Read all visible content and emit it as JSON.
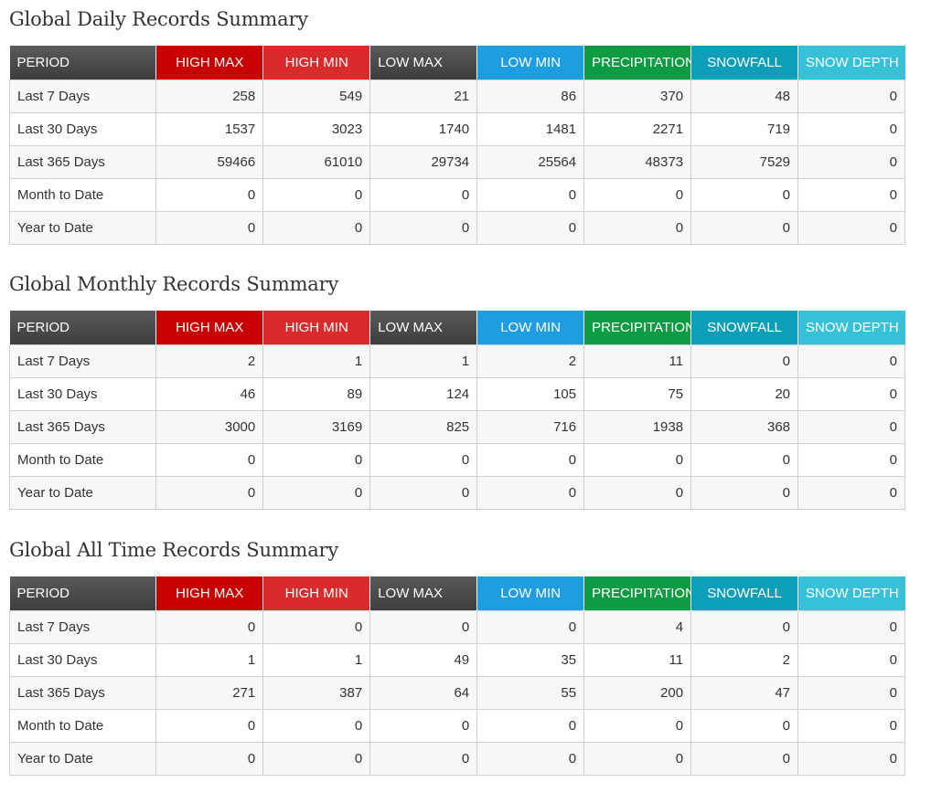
{
  "columns": [
    "PERIOD",
    "HIGH MAX",
    "HIGH MIN",
    "LOW MAX",
    "LOW MIN",
    "PRECIPITATION",
    "SNOWFALL",
    "SNOW DEPTH"
  ],
  "header_colors": {
    "period": "#4a4a4a",
    "high_max": "#c90000",
    "high_min": "#d92b2b",
    "low_max": "#4a4a4a",
    "low_min": "#1e9de0",
    "precipitation": "#0f9a44",
    "snowfall": "#0e9fb8",
    "snow_depth": "#36c1d9"
  },
  "sections": [
    {
      "title": "Global Daily Records Summary",
      "rows": [
        {
          "period": "Last 7 Days",
          "values": [
            "258",
            "549",
            "21",
            "86",
            "370",
            "48",
            "0"
          ]
        },
        {
          "period": "Last 30 Days",
          "values": [
            "1537",
            "3023",
            "1740",
            "1481",
            "2271",
            "719",
            "0"
          ]
        },
        {
          "period": "Last 365 Days",
          "values": [
            "59466",
            "61010",
            "29734",
            "25564",
            "48373",
            "7529",
            "0"
          ]
        },
        {
          "period": "Month to Date",
          "values": [
            "0",
            "0",
            "0",
            "0",
            "0",
            "0",
            "0"
          ]
        },
        {
          "period": "Year to Date",
          "values": [
            "0",
            "0",
            "0",
            "0",
            "0",
            "0",
            "0"
          ]
        }
      ]
    },
    {
      "title": "Global Monthly Records Summary",
      "rows": [
        {
          "period": "Last 7 Days",
          "values": [
            "2",
            "1",
            "1",
            "2",
            "11",
            "0",
            "0"
          ]
        },
        {
          "period": "Last 30 Days",
          "values": [
            "46",
            "89",
            "124",
            "105",
            "75",
            "20",
            "0"
          ]
        },
        {
          "period": "Last 365 Days",
          "values": [
            "3000",
            "3169",
            "825",
            "716",
            "1938",
            "368",
            "0"
          ]
        },
        {
          "period": "Month to Date",
          "values": [
            "0",
            "0",
            "0",
            "0",
            "0",
            "0",
            "0"
          ]
        },
        {
          "period": "Year to Date",
          "values": [
            "0",
            "0",
            "0",
            "0",
            "0",
            "0",
            "0"
          ]
        }
      ]
    },
    {
      "title": "Global All Time Records Summary",
      "rows": [
        {
          "period": "Last 7 Days",
          "values": [
            "0",
            "0",
            "0",
            "0",
            "4",
            "0",
            "0"
          ]
        },
        {
          "period": "Last 30 Days",
          "values": [
            "1",
            "1",
            "49",
            "35",
            "11",
            "2",
            "0"
          ]
        },
        {
          "period": "Last 365 Days",
          "values": [
            "271",
            "387",
            "64",
            "55",
            "200",
            "47",
            "0"
          ]
        },
        {
          "period": "Month to Date",
          "values": [
            "0",
            "0",
            "0",
            "0",
            "0",
            "0",
            "0"
          ]
        },
        {
          "period": "Year to Date",
          "values": [
            "0",
            "0",
            "0",
            "0",
            "0",
            "0",
            "0"
          ]
        }
      ]
    }
  ]
}
